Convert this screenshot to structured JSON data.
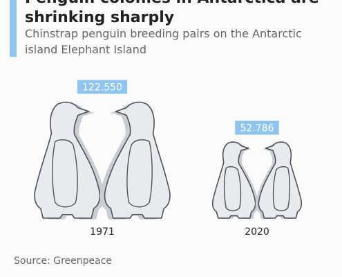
{
  "title": "Penguin colonies in Antarctica are shrinking sharply",
  "subtitle": "Chinstrap penguin breeding pairs on the Antarctic island Elephant Island",
  "source": "Source: Greenpeace",
  "colors": {
    "accent": "#8ec4ee",
    "label_bg": "#8ec4ee",
    "penguin_fill": "#e7eaef",
    "penguin_shadow": "#c9cdd4",
    "penguin_stroke": "#4e5257",
    "text": "#222222"
  },
  "chart_data": {
    "type": "pictogram",
    "title": "Penguin colonies in Antarctica are shrinking sharply",
    "subtitle": "Chinstrap penguin breeding pairs on the Antarctic island Elephant Island",
    "categories": [
      "1971",
      "2020"
    ],
    "values": [
      122550,
      52786
    ],
    "value_labels": [
      "122.550",
      "52.786"
    ]
  }
}
